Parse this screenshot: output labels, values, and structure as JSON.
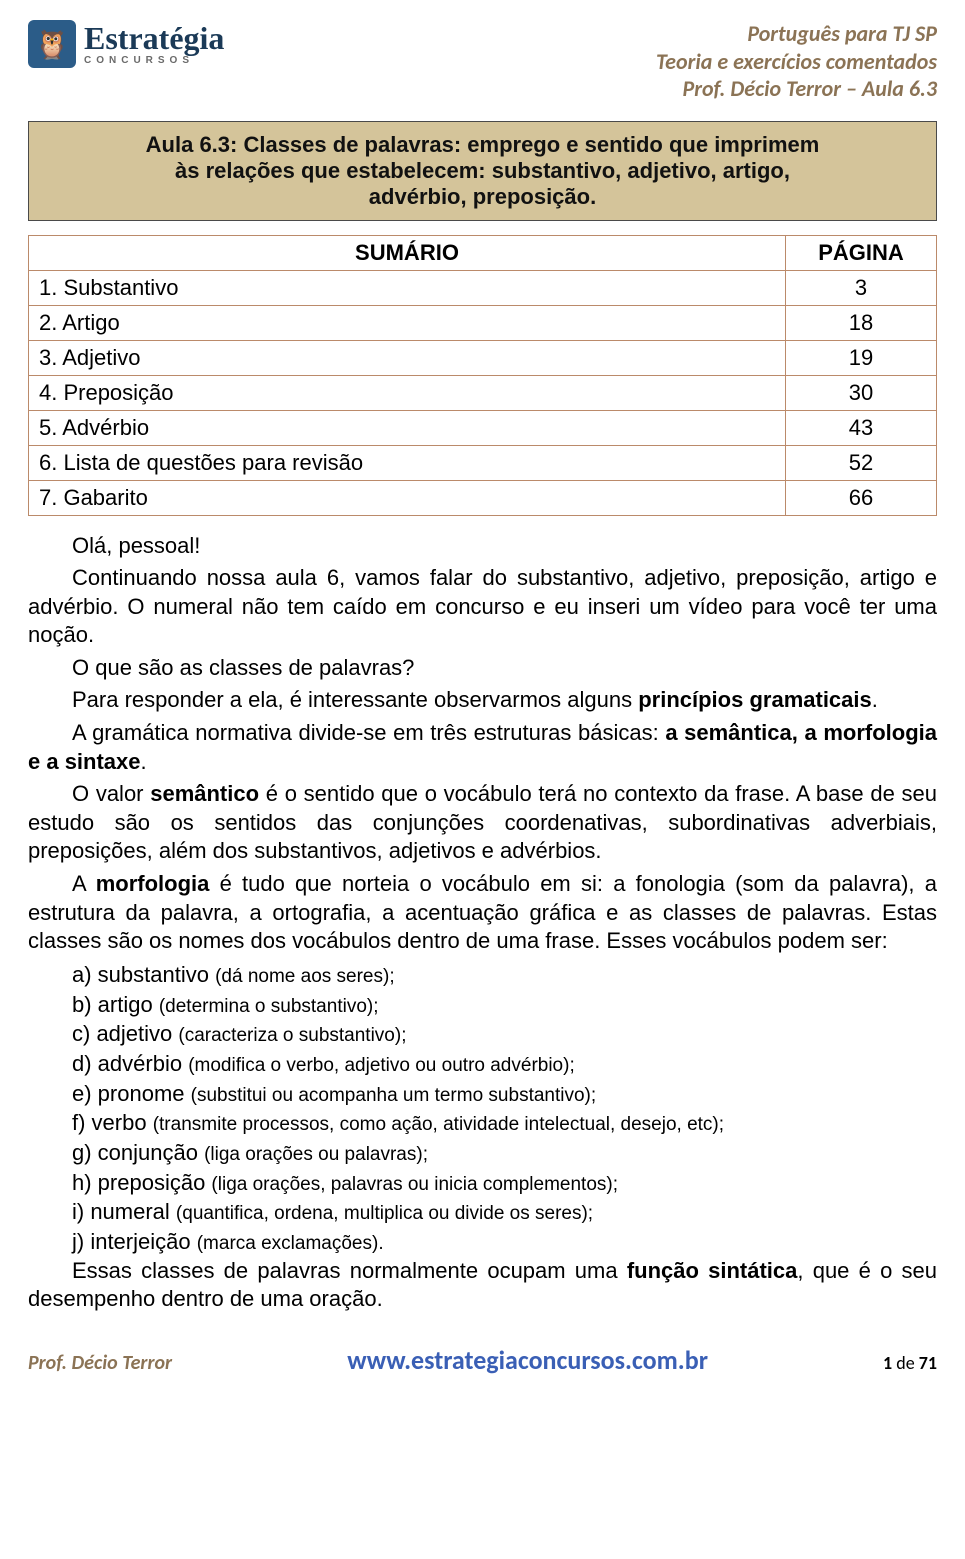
{
  "header": {
    "logo": {
      "main": "Estratégia",
      "sub": "CONCURSOS"
    },
    "right_lines": [
      "Português para TJ SP",
      "Teoria e exercícios comentados",
      "Prof. Décio Terror  – Aula 6.3"
    ]
  },
  "title_lines": [
    "Aula 6.3: Classes de palavras: emprego e sentido que imprimem",
    "às relações que estabelecem: substantivo, adjetivo, artigo,",
    "advérbio, preposição."
  ],
  "toc": {
    "headers": {
      "sumario": "SUMÁRIO",
      "pagina": "PÁGINA"
    },
    "rows": [
      {
        "item": "1. Substantivo",
        "page": "3"
      },
      {
        "item": "2. Artigo",
        "page": "18"
      },
      {
        "item": "3. Adjetivo",
        "page": "19"
      },
      {
        "item": "4. Preposição",
        "page": "30"
      },
      {
        "item": "5. Advérbio",
        "page": "43"
      },
      {
        "item": "6. Lista de questões para revisão",
        "page": "52"
      },
      {
        "item": "7. Gabarito",
        "page": "66"
      }
    ]
  },
  "paragraphs": {
    "p1": "Olá, pessoal!",
    "p2": "Continuando nossa aula 6, vamos falar do substantivo, adjetivo, preposição, artigo e advérbio. O numeral não tem caído em concurso e eu inseri um vídeo para você ter uma noção.",
    "p3": "O que são as classes de palavras?",
    "p4_pre": "Para responder a ela, é interessante observarmos alguns ",
    "p4_bold": "princípios gramaticais",
    "p4_post": ".",
    "p5_pre": "A gramática normativa divide-se em três estruturas básicas: ",
    "p5_bold": "a semântica, a morfologia e a sintaxe",
    "p5_post": ".",
    "p6_pre": "O valor ",
    "p6_bold": "semântico",
    "p6_post": " é o sentido que o vocábulo terá no contexto da frase. A base de seu estudo são os sentidos das conjunções coordenativas, subordinativas adverbiais, preposições, além dos substantivos, adjetivos e advérbios.",
    "p7_pre": "A ",
    "p7_bold": "morfologia",
    "p7_post": " é tudo que norteia o vocábulo em si: a fonologia (som da palavra), a estrutura da palavra, a ortografia, a acentuação gráfica e as classes de palavras. Estas classes são os nomes dos vocábulos dentro de uma frase. Esses vocábulos podem ser:"
  },
  "list_items": [
    {
      "label": "a) substantivo ",
      "def": "(dá nome aos seres);"
    },
    {
      "label": "b) artigo ",
      "def": "(determina o substantivo);"
    },
    {
      "label": "c) adjetivo ",
      "def": "(caracteriza o substantivo);"
    },
    {
      "label": "d) advérbio ",
      "def": "(modifica o verbo, adjetivo ou outro advérbio);"
    },
    {
      "label": "e) pronome ",
      "def": "(substitui ou acompanha um termo substantivo);"
    },
    {
      "label": "f) verbo ",
      "def": "(transmite processos, como ação, atividade intelectual, desejo, etc);"
    },
    {
      "label": "g) conjunção ",
      "def": "(liga orações ou palavras);"
    },
    {
      "label": "h) preposição ",
      "def": "(liga orações, palavras ou inicia complementos);"
    },
    {
      "label": "i) numeral ",
      "def": "(quantifica, ordena, multiplica ou divide os seres);"
    },
    {
      "label": "j) interjeição ",
      "def": "(marca exclamações)."
    }
  ],
  "p_final_pre": "Essas classes de palavras normalmente ocupam uma ",
  "p_final_bold": "função sintática",
  "p_final_post": ", que é o seu desempenho dentro de uma oração.",
  "footer": {
    "left": "Prof. Décio Terror",
    "center": "www.estrategiaconcursos.com.br",
    "right_pre": "1",
    "right_mid": " de ",
    "right_post": "71"
  },
  "colors": {
    "title_bg": "#d4c49a",
    "title_border": "#4a4a4a",
    "table_border": "#bb8a6a",
    "header_right": "#8b7355",
    "footer_link": "#3a5fb5",
    "logo_bg": "#2b5c88"
  }
}
